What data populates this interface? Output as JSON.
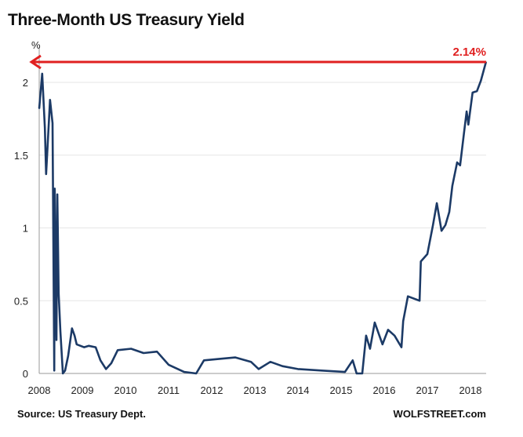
{
  "chart_data": {
    "type": "line",
    "title": "Three-Month US Treasury Yield",
    "ylabel": "%",
    "xlabel": "",
    "ylim": [
      0,
      2.14
    ],
    "xlim": [
      2008,
      2018.36
    ],
    "yticks": [
      "0",
      "0.5",
      "1",
      "1.5",
      "2"
    ],
    "xticks": [
      "2008",
      "2009",
      "2010",
      "2011",
      "2012",
      "2013",
      "2014",
      "2015",
      "2016",
      "2017",
      "2018"
    ],
    "grid": "horizontal",
    "line_color": "#1c3a66",
    "annotation": {
      "label": "2.14%",
      "value": 2.14,
      "color": "#e02020"
    },
    "x": [
      2008.0,
      2008.07,
      2008.13,
      2008.16,
      2008.25,
      2008.31,
      2008.35,
      2008.36,
      2008.4,
      2008.42,
      2008.45,
      2008.49,
      2008.55,
      2008.6,
      2008.67,
      2008.76,
      2008.82,
      2008.87,
      2009.04,
      2009.15,
      2009.31,
      2009.42,
      2009.55,
      2009.67,
      2009.82,
      2010.13,
      2010.42,
      2010.73,
      2011.0,
      2011.36,
      2011.64,
      2011.82,
      2012.18,
      2012.55,
      2012.91,
      2013.09,
      2013.36,
      2013.64,
      2014.0,
      2014.55,
      2015.09,
      2015.27,
      2015.36,
      2015.49,
      2015.58,
      2015.67,
      2015.78,
      2015.96,
      2016.09,
      2016.24,
      2016.4,
      2016.44,
      2016.55,
      2016.82,
      2016.85,
      2017.0,
      2017.13,
      2017.22,
      2017.33,
      2017.42,
      2017.51,
      2017.58,
      2017.69,
      2017.76,
      2017.85,
      2017.91,
      2017.95,
      2018.05,
      2018.15,
      2018.24,
      2018.36
    ],
    "y": [
      1.82,
      2.06,
      1.69,
      1.37,
      1.88,
      1.72,
      0.02,
      1.27,
      0.23,
      1.23,
      0.55,
      0.29,
      0.0,
      0.02,
      0.12,
      0.31,
      0.26,
      0.2,
      0.18,
      0.19,
      0.18,
      0.09,
      0.03,
      0.07,
      0.16,
      0.17,
      0.14,
      0.15,
      0.06,
      0.01,
      0.0,
      0.09,
      0.1,
      0.11,
      0.08,
      0.03,
      0.08,
      0.05,
      0.03,
      0.02,
      0.01,
      0.09,
      0.0,
      0.0,
      0.26,
      0.17,
      0.35,
      0.2,
      0.3,
      0.26,
      0.18,
      0.36,
      0.53,
      0.5,
      0.77,
      0.82,
      1.02,
      1.17,
      0.98,
      1.02,
      1.11,
      1.29,
      1.45,
      1.43,
      1.65,
      1.8,
      1.71,
      1.93,
      1.94,
      2.01,
      2.14
    ]
  },
  "footer": {
    "source": "Source: US Treasury Dept.",
    "brand": "WOLFSTREET.com"
  }
}
